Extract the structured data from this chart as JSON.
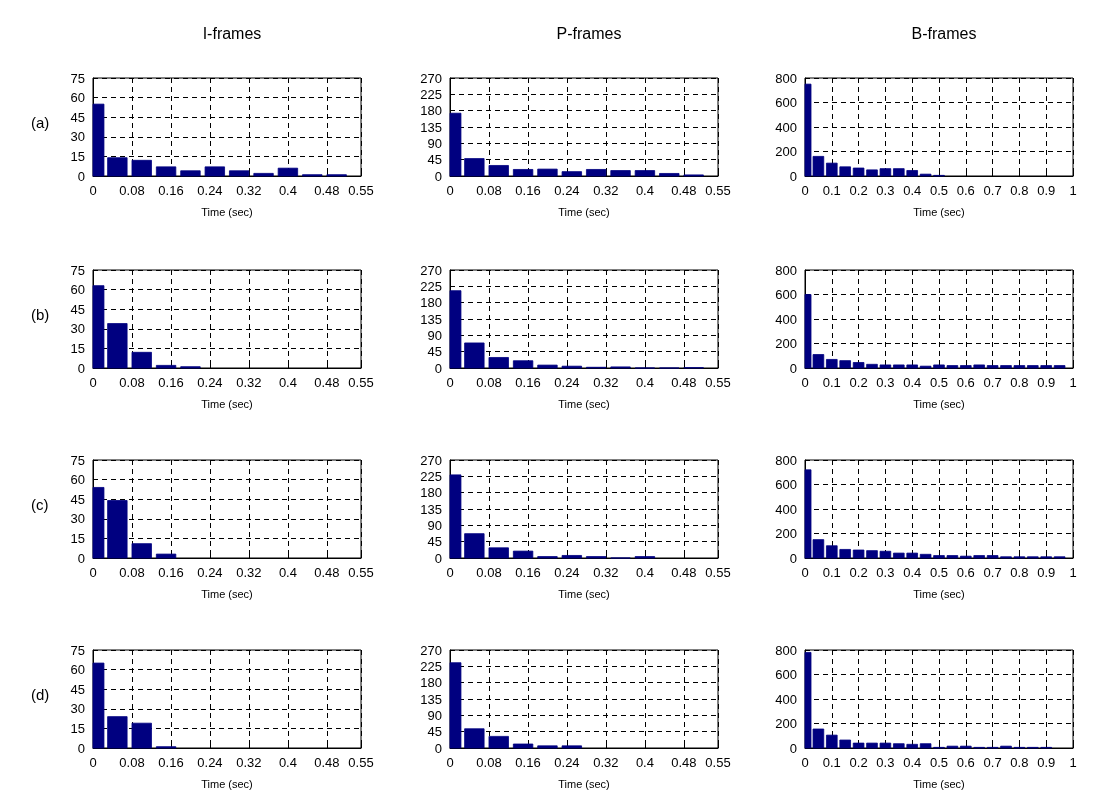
{
  "chart_data": [
    {
      "type": "histogram",
      "title": "I-frames",
      "xlabel": "Time (sec)",
      "annotations": [
        "(a)"
      ],
      "color": "#000080",
      "grid": true,
      "xlim": [
        0,
        0.55
      ],
      "xticks": [
        0,
        0.08,
        0.16,
        0.24,
        0.32,
        0.4,
        0.48,
        0.55
      ],
      "ylim": [
        0,
        75
      ],
      "yticks": [
        0,
        15,
        30,
        45,
        60,
        75
      ],
      "bins": [
        0,
        0.025,
        0.075,
        0.125,
        0.175,
        0.225,
        0.275,
        0.325,
        0.375,
        0.425,
        0.475,
        0.525
      ],
      "values": [
        55,
        14,
        12,
        7,
        4,
        7,
        4,
        2,
        6,
        1,
        1
      ]
    },
    {
      "type": "histogram",
      "title": "P-frames",
      "xlabel": "Time (sec)",
      "color": "#000080",
      "grid": true,
      "xlim": [
        0,
        0.55
      ],
      "xticks": [
        0,
        0.08,
        0.16,
        0.24,
        0.32,
        0.4,
        0.48,
        0.55
      ],
      "ylim": [
        0,
        270
      ],
      "yticks": [
        0,
        45,
        90,
        135,
        180,
        225,
        270
      ],
      "bins": [
        0,
        0.025,
        0.075,
        0.125,
        0.175,
        0.225,
        0.275,
        0.325,
        0.375,
        0.425,
        0.475,
        0.525
      ],
      "values": [
        173,
        48,
        29,
        18,
        19,
        12,
        18,
        15,
        15,
        7,
        3
      ]
    },
    {
      "type": "histogram",
      "title": "B-frames",
      "xlabel": "Time (sec)",
      "color": "#000080",
      "grid": true,
      "xlim": [
        0,
        1
      ],
      "xticks": [
        0,
        0.1,
        0.2,
        0.3,
        0.4,
        0.5,
        0.6,
        0.7,
        0.8,
        0.9,
        1
      ],
      "ylim": [
        0,
        800
      ],
      "yticks": [
        0,
        200,
        400,
        600,
        800
      ],
      "bins": [
        0,
        0.025,
        0.075,
        0.125,
        0.175,
        0.225,
        0.275,
        0.325,
        0.375,
        0.425,
        0.475,
        0.525
      ],
      "values": [
        750,
        160,
        105,
        75,
        65,
        50,
        60,
        60,
        45,
        15,
        5
      ]
    },
    {
      "type": "histogram",
      "xlabel": "Time (sec)",
      "annotations": [
        "(b)"
      ],
      "color": "#000080",
      "grid": true,
      "xlim": [
        0,
        0.55
      ],
      "xticks": [
        0,
        0.08,
        0.16,
        0.24,
        0.32,
        0.4,
        0.48,
        0.55
      ],
      "ylim": [
        0,
        75
      ],
      "yticks": [
        0,
        15,
        30,
        45,
        60,
        75
      ],
      "bins": [
        0,
        0.025,
        0.075,
        0.125,
        0.175,
        0.225
      ],
      "values": [
        63,
        34,
        12,
        2,
        1
      ]
    },
    {
      "type": "histogram",
      "xlabel": "Time (sec)",
      "color": "#000080",
      "grid": true,
      "xlim": [
        0,
        0.55
      ],
      "xticks": [
        0,
        0.08,
        0.16,
        0.24,
        0.32,
        0.4,
        0.48,
        0.55
      ],
      "ylim": [
        0,
        270
      ],
      "yticks": [
        0,
        45,
        90,
        135,
        180,
        225,
        270
      ],
      "bins": [
        0,
        0.025,
        0.075,
        0.125,
        0.175,
        0.225,
        0.275,
        0.325,
        0.375,
        0.425,
        0.475,
        0.525
      ],
      "values": [
        213,
        69,
        29,
        20,
        8,
        5,
        2,
        3,
        0,
        0,
        1
      ]
    },
    {
      "type": "histogram",
      "xlabel": "Time (sec)",
      "color": "#000080",
      "grid": true,
      "xlim": [
        0,
        1
      ],
      "xticks": [
        0,
        0.1,
        0.2,
        0.3,
        0.4,
        0.5,
        0.6,
        0.7,
        0.8,
        0.9,
        1
      ],
      "ylim": [
        0,
        800
      ],
      "yticks": [
        0,
        200,
        400,
        600,
        800
      ],
      "bins": [
        0,
        0.025,
        0.075,
        0.125,
        0.175,
        0.225,
        0.275,
        0.325,
        0.375,
        0.425,
        0.475,
        0.525,
        0.575,
        0.625,
        0.675,
        0.725,
        0.775,
        0.825,
        0.875,
        0.925,
        0.975
      ],
      "values": [
        600,
        110,
        70,
        60,
        45,
        30,
        25,
        25,
        25,
        15,
        25,
        20,
        20,
        25,
        20,
        20,
        20,
        20,
        20,
        20
      ]
    },
    {
      "type": "histogram",
      "xlabel": "Time (sec)",
      "annotations": [
        "(c)"
      ],
      "color": "#000080",
      "grid": true,
      "xlim": [
        0,
        0.55
      ],
      "xticks": [
        0,
        0.08,
        0.16,
        0.24,
        0.32,
        0.4,
        0.48,
        0.55
      ],
      "ylim": [
        0,
        75
      ],
      "yticks": [
        0,
        15,
        30,
        45,
        60,
        75
      ],
      "bins": [
        0,
        0.025,
        0.075,
        0.125,
        0.175
      ],
      "values": [
        54,
        44,
        11,
        3
      ]
    },
    {
      "type": "histogram",
      "xlabel": "Time (sec)",
      "color": "#000080",
      "grid": true,
      "xlim": [
        0,
        0.55
      ],
      "xticks": [
        0,
        0.08,
        0.16,
        0.24,
        0.32,
        0.4,
        0.48,
        0.55
      ],
      "ylim": [
        0,
        270
      ],
      "yticks": [
        0,
        45,
        90,
        135,
        180,
        225,
        270
      ],
      "bins": [
        0,
        0.025,
        0.075,
        0.125,
        0.175,
        0.225,
        0.275,
        0.325,
        0.375,
        0.425
      ],
      "values": [
        229,
        67,
        28,
        19,
        4,
        7,
        4,
        0,
        4
      ]
    },
    {
      "type": "histogram",
      "xlabel": "Time (sec)",
      "color": "#000080",
      "grid": true,
      "xlim": [
        0,
        1
      ],
      "xticks": [
        0,
        0.1,
        0.2,
        0.3,
        0.4,
        0.5,
        0.6,
        0.7,
        0.8,
        0.9,
        1
      ],
      "ylim": [
        0,
        800
      ],
      "yticks": [
        0,
        200,
        400,
        600,
        800
      ],
      "bins": [
        0,
        0.025,
        0.075,
        0.125,
        0.175,
        0.225,
        0.275,
        0.325,
        0.375,
        0.425,
        0.475,
        0.525,
        0.575,
        0.625,
        0.675,
        0.725,
        0.775,
        0.825,
        0.875,
        0.925,
        0.975
      ],
      "values": [
        720,
        150,
        100,
        70,
        65,
        60,
        55,
        40,
        40,
        30,
        20,
        20,
        15,
        20,
        20,
        10,
        10,
        10,
        10,
        10
      ]
    },
    {
      "type": "histogram",
      "xlabel": "Time (sec)",
      "annotations": [
        "(d)"
      ],
      "color": "#000080",
      "grid": true,
      "xlim": [
        0,
        0.55
      ],
      "xticks": [
        0,
        0.08,
        0.16,
        0.24,
        0.32,
        0.4,
        0.48,
        0.55
      ],
      "ylim": [
        0,
        75
      ],
      "yticks": [
        0,
        15,
        30,
        45,
        60,
        75
      ],
      "bins": [
        0,
        0.025,
        0.075,
        0.125,
        0.175
      ],
      "values": [
        65,
        24,
        19,
        1
      ]
    },
    {
      "type": "histogram",
      "xlabel": "Time (sec)",
      "color": "#000080",
      "grid": true,
      "xlim": [
        0,
        0.55
      ],
      "xticks": [
        0,
        0.08,
        0.16,
        0.24,
        0.32,
        0.4,
        0.48,
        0.55
      ],
      "ylim": [
        0,
        270
      ],
      "yticks": [
        0,
        45,
        90,
        135,
        180,
        225,
        270
      ],
      "bins": [
        0,
        0.025,
        0.075,
        0.125,
        0.175,
        0.225,
        0.275
      ],
      "values": [
        235,
        53,
        32,
        11,
        6,
        6
      ]
    },
    {
      "type": "histogram",
      "xlabel": "Time (sec)",
      "color": "#000080",
      "grid": true,
      "xlim": [
        0,
        1
      ],
      "xticks": [
        0,
        0.1,
        0.2,
        0.3,
        0.4,
        0.5,
        0.6,
        0.7,
        0.8,
        0.9,
        1
      ],
      "ylim": [
        0,
        800
      ],
      "yticks": [
        0,
        200,
        400,
        600,
        800
      ],
      "bins": [
        0,
        0.025,
        0.075,
        0.125,
        0.175,
        0.225,
        0.275,
        0.325,
        0.375,
        0.425,
        0.475,
        0.525,
        0.575,
        0.625,
        0.675,
        0.725,
        0.775,
        0.825,
        0.875,
        0.925
      ],
      "values": [
        780,
        155,
        105,
        65,
        40,
        40,
        40,
        35,
        30,
        35,
        5,
        15,
        15,
        5,
        5,
        15,
        5,
        5,
        5
      ]
    }
  ]
}
